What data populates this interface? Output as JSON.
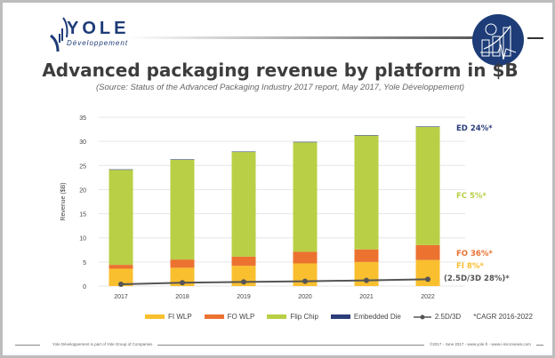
{
  "header": {
    "logo_text": "YOLE",
    "logo_subtext": "Développement"
  },
  "chart_data": {
    "type": "bar",
    "stacked": true,
    "title": "Advanced packaging revenue by platform in $B",
    "subtitle": "(Source: Status of the Advanced Packaging Industry 2017 report, May 2017, Yole Développement)",
    "ylabel": "Revenue ($B)",
    "ylim": [
      0,
      35
    ],
    "yticks": [
      0,
      5,
      10,
      15,
      20,
      25,
      30,
      35
    ],
    "grid": true,
    "categories": [
      "2017",
      "2018",
      "2019",
      "2020",
      "2021",
      "2022"
    ],
    "series": [
      {
        "name": "FI WLP",
        "color": "#f9bf2e",
        "values": [
          3.6,
          3.8,
          4.2,
          4.7,
          5.0,
          5.4
        ]
      },
      {
        "name": "FO WLP",
        "color": "#ec7230",
        "values": [
          0.8,
          1.7,
          1.9,
          2.4,
          2.6,
          3.1
        ]
      },
      {
        "name": "Flip Chip",
        "color": "#b9cf45",
        "values": [
          19.7,
          20.7,
          21.7,
          22.7,
          23.6,
          24.5
        ]
      },
      {
        "name": "Embedded Die",
        "color": "#2b3d7a",
        "values": [
          0.1,
          0.1,
          0.1,
          0.1,
          0.1,
          0.1
        ]
      }
    ],
    "line_series": {
      "name": "2.5D/3D",
      "color": "#555555",
      "values": [
        0.37,
        0.7,
        0.86,
        1.0,
        1.17,
        1.4
      ]
    },
    "annotations": [
      {
        "text": "ED 24%*",
        "color": "#2b3d7a"
      },
      {
        "text": "FC 5%*",
        "color": "#b9cf45"
      },
      {
        "text": "FO 36%*",
        "color": "#ec7230"
      },
      {
        "text": "FI 8%*",
        "color": "#f9bf2e"
      },
      {
        "text": "(2.5D/3D 28%)*",
        "color": "#555555"
      }
    ],
    "legend_note": "*CAGR 2016-2022",
    "legend_position": "bottom"
  },
  "footer": {
    "left": "Yole Développement is part of Yole Group of Companies",
    "right": "©2017 - June 2017 - www.yole.fr - www.i-micronews.com"
  }
}
